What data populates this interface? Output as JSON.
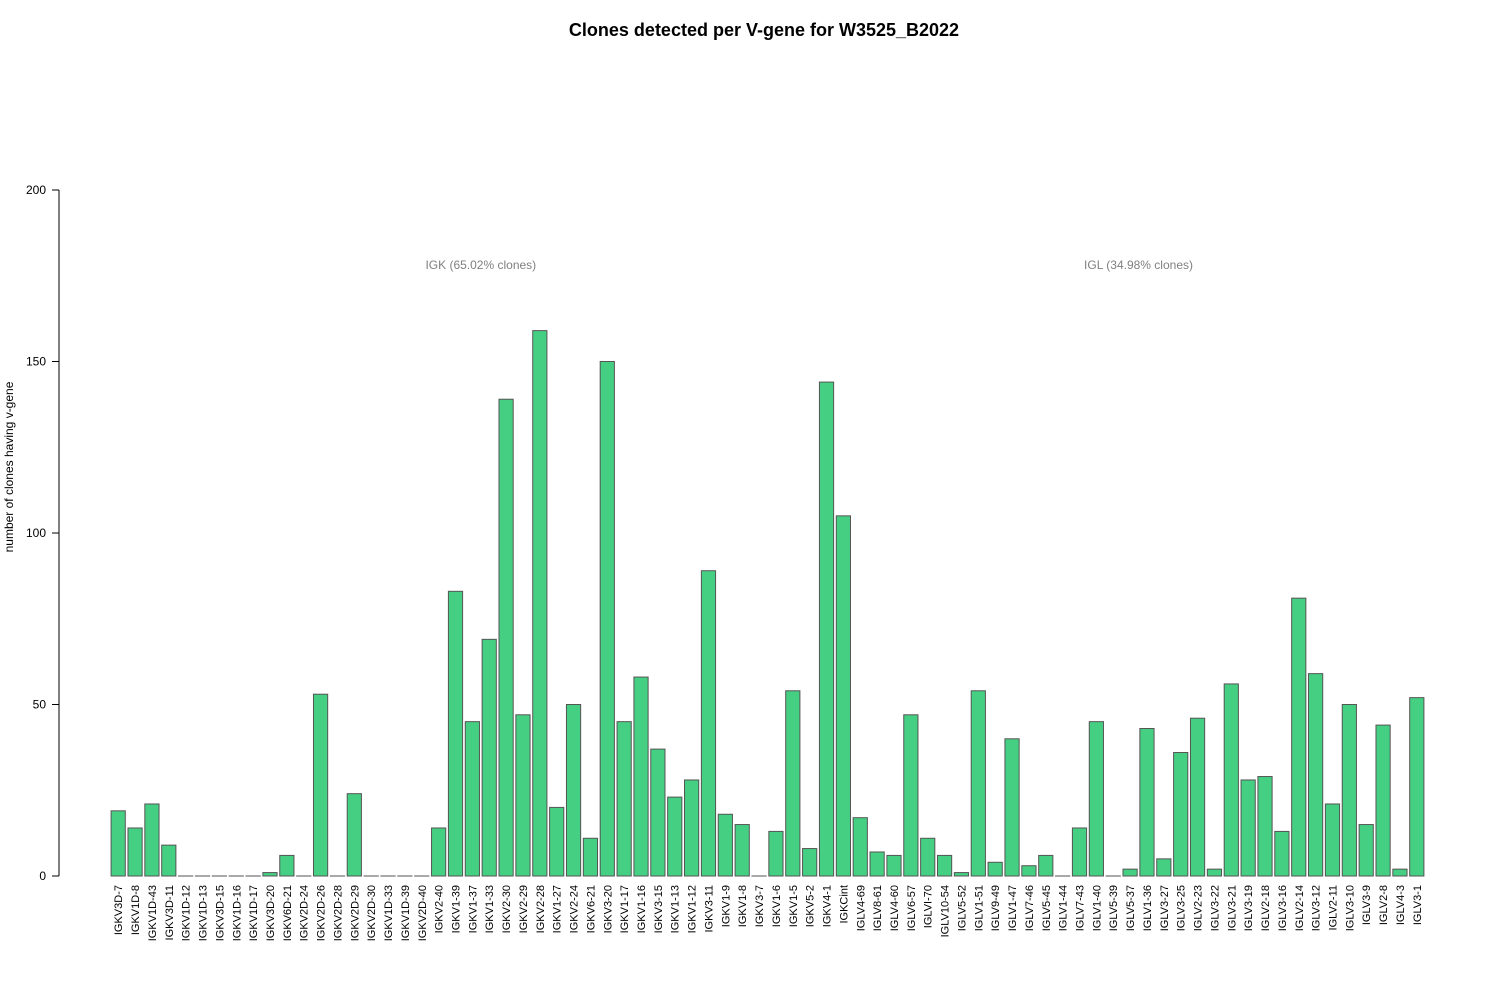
{
  "chart_data": {
    "type": "bar",
    "title": "Clones detected per V-gene for W3525_B2022",
    "ylabel": "number of clones having v-gene",
    "xlabel": "",
    "ylim": [
      0,
      200
    ],
    "yticks": [
      0,
      50,
      100,
      150,
      200
    ],
    "bar_color": "#45CF82",
    "bar_border_color": "#555555",
    "grid": false,
    "groups": [
      {
        "label": "IGK (65.02% clones)",
        "first_category": "IGKV3D-7",
        "last_category": "IGKCint"
      },
      {
        "label": "IGL (34.98% clones)",
        "first_category": "IGLV4-69",
        "last_category": "IGLV3-1"
      }
    ],
    "categories": [
      "IGKV3D-7",
      "IGKV1D-8",
      "IGKV1D-43",
      "IGKV3D-11",
      "IGKV1D-12",
      "IGKV1D-13",
      "IGKV3D-15",
      "IGKV1D-16",
      "IGKV1D-17",
      "IGKV3D-20",
      "IGKV6D-21",
      "IGKV2D-24",
      "IGKV2D-26",
      "IGKV2D-28",
      "IGKV2D-29",
      "IGKV2D-30",
      "IGKV1D-33",
      "IGKV1D-39",
      "IGKV2D-40",
      "IGKV2-40",
      "IGKV1-39",
      "IGKV1-37",
      "IGKV1-33",
      "IGKV2-30",
      "IGKV2-29",
      "IGKV2-28",
      "IGKV1-27",
      "IGKV2-24",
      "IGKV6-21",
      "IGKV3-20",
      "IGKV1-17",
      "IGKV1-16",
      "IGKV3-15",
      "IGKV1-13",
      "IGKV1-12",
      "IGKV3-11",
      "IGKV1-9",
      "IGKV1-8",
      "IGKV3-7",
      "IGKV1-6",
      "IGKV1-5",
      "IGKV5-2",
      "IGKV4-1",
      "IGKCint",
      "IGLV4-69",
      "IGLV8-61",
      "IGLV4-60",
      "IGLV6-57",
      "IGLVI-70",
      "IGLV10-54",
      "IGLV5-52",
      "IGLV1-51",
      "IGLV9-49",
      "IGLV1-47",
      "IGLV7-46",
      "IGLV5-45",
      "IGLV1-44",
      "IGLV7-43",
      "IGLV1-40",
      "IGLV5-39",
      "IGLV5-37",
      "IGLV1-36",
      "IGLV3-27",
      "IGLV3-25",
      "IGLV2-23",
      "IGLV3-22",
      "IGLV3-21",
      "IGLV3-19",
      "IGLV2-18",
      "IGLV3-16",
      "IGLV2-14",
      "IGLV3-12",
      "IGLV2-11",
      "IGLV3-10",
      "IGLV3-9",
      "IGLV2-8",
      "IGLV4-3",
      "IGLV3-1"
    ],
    "values": [
      19,
      14,
      21,
      9,
      0,
      0,
      0,
      0,
      0,
      1,
      6,
      0,
      53,
      0,
      24,
      0,
      0,
      0,
      0,
      14,
      83,
      45,
      69,
      139,
      47,
      159,
      20,
      50,
      11,
      150,
      45,
      58,
      37,
      23,
      28,
      89,
      18,
      15,
      0,
      13,
      54,
      8,
      144,
      105,
      17,
      7,
      6,
      47,
      11,
      6,
      1,
      54,
      4,
      40,
      3,
      6,
      0,
      14,
      45,
      0,
      2,
      43,
      5,
      36,
      46,
      2,
      56,
      28,
      29,
      13,
      81,
      59,
      21,
      50,
      15,
      44,
      2,
      52
    ]
  }
}
